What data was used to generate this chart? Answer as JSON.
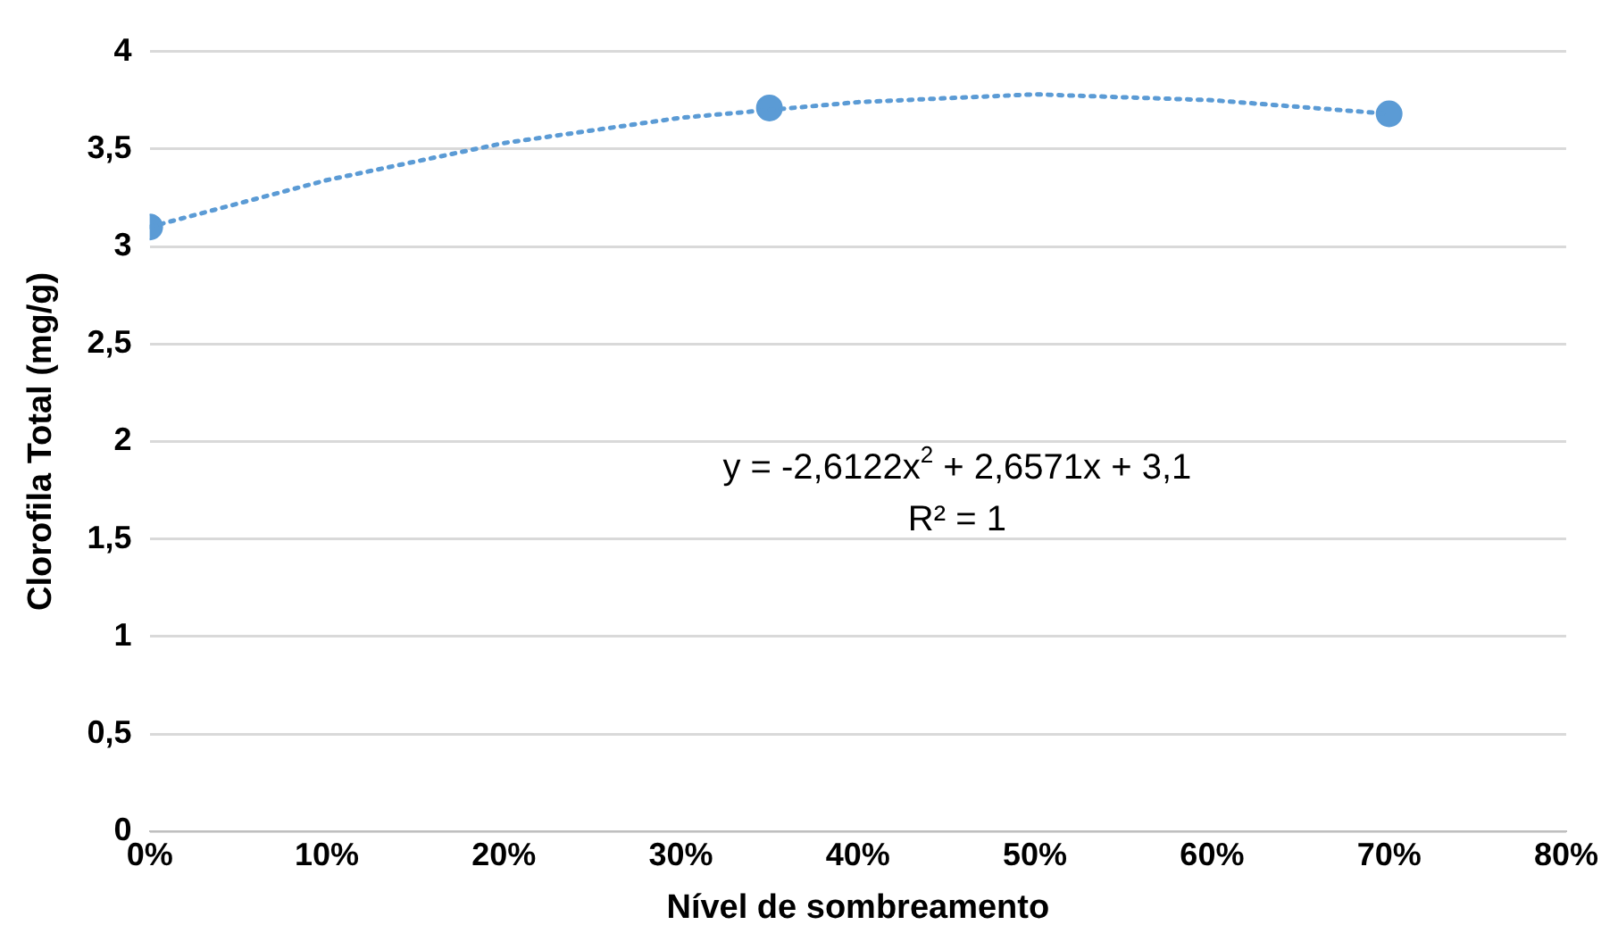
{
  "chart_data": {
    "type": "scatter",
    "xlabel": "Nível de sombreamento",
    "ylabel": "Clorofila Total (mg/g)",
    "xlim": [
      0,
      80
    ],
    "xticks": [
      {
        "value": 0,
        "label": "0%"
      },
      {
        "value": 10,
        "label": "10%"
      },
      {
        "value": 20,
        "label": "20%"
      },
      {
        "value": 30,
        "label": "30%"
      },
      {
        "value": 40,
        "label": "40%"
      },
      {
        "value": 50,
        "label": "50%"
      },
      {
        "value": 60,
        "label": "60%"
      },
      {
        "value": 70,
        "label": "70%"
      },
      {
        "value": 80,
        "label": "80%"
      }
    ],
    "ylim": [
      0,
      4
    ],
    "yticks": [
      0,
      {
        "value": 0.5,
        "label": "0,5"
      },
      1,
      {
        "value": 1.5,
        "label": "1,5"
      },
      2,
      {
        "value": 2.5,
        "label": "2,5"
      },
      3,
      {
        "value": 3.5,
        "label": "3,5"
      },
      4
    ],
    "grid": "y",
    "series": [
      {
        "color": "#5b9bd5",
        "marker": "circle",
        "x": [
          0,
          35,
          70
        ],
        "values": [
          3.1,
          3.71,
          3.68
        ]
      },
      {
        "type": "line",
        "color": "#5b9bd5",
        "line_style": "dotted",
        "marker": "none",
        "x": [
          0,
          10,
          20,
          30,
          40,
          50,
          60,
          70
        ],
        "values": [
          3.1,
          3.34,
          3.53,
          3.66,
          3.74,
          3.78,
          3.75,
          3.68
        ]
      }
    ],
    "annotations": [
      "y = -2,6122x$^{2}$ + 2,6571x + 3,1",
      "R² = 1"
    ]
  }
}
